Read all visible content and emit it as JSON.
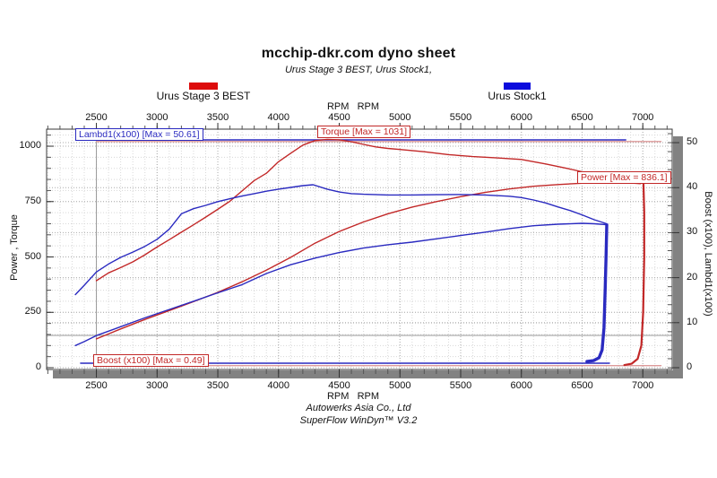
{
  "title": "mcchip-dkr.com dyno sheet",
  "subtitle": "Urus Stage 3 BEST, Urus Stock1,",
  "legend": [
    {
      "label": "Urus Stage 3 BEST",
      "color": "#dd0b0b"
    },
    {
      "label": "Urus Stock1",
      "color": "#0b0bdd"
    }
  ],
  "annotations": [
    {
      "text": "Lambd1(x100) [Max = 50.61]",
      "color": "#2a2ac0"
    },
    {
      "text": "Torque [Max = 1031]",
      "color": "#c22828"
    },
    {
      "text": "Power [Max = 836.1]",
      "color": "#c22828"
    },
    {
      "text": "Boost (x100) [Max = 0.49]",
      "color": "#c22828"
    }
  ],
  "footer": [
    "Autowerks Asia Co., Ltd",
    "SuperFlow WinDyn™ V3.2"
  ],
  "chart_data": {
    "type": "line",
    "x_unit_label": "RPM   RPM",
    "x_range": [
      2090,
      7242
    ],
    "x_ticks": [
      2500,
      3000,
      3500,
      4000,
      4500,
      5000,
      5500,
      6000,
      6500,
      7000
    ],
    "x_minor_step": 100,
    "y_left": {
      "label": "Power , Torque",
      "range": [
        -8,
        1077
      ],
      "ticks": [
        0,
        250,
        500,
        750,
        1000
      ],
      "minor_step": 50
    },
    "y_right": {
      "label": "Boost (x100), Lambd1(x100)",
      "range": [
        -0.4,
        53
      ],
      "ticks": [
        0,
        10,
        20,
        30,
        40,
        50
      ],
      "minor_step": 2
    },
    "cursor": {
      "rpm": 2500,
      "level_left": 146
    },
    "grid": {
      "minor_color": "#d8d8d8",
      "major_color": "#ababab",
      "cursor_color": "#9a9a9a"
    },
    "series": [
      {
        "name": "lambda-stage3",
        "color": "#dd9a9a",
        "width": 1.4,
        "axis": "right",
        "points": [
          [
            2500,
            50.25
          ],
          [
            7150,
            50.25
          ]
        ]
      },
      {
        "name": "boost-stage3",
        "color": "#dd9a9a",
        "width": 1.4,
        "axis": "right",
        "points": [
          [
            2500,
            0.45
          ],
          [
            7150,
            0.45
          ]
        ]
      },
      {
        "name": "lambda-stock",
        "color": "#2a2ac0",
        "width": 1.4,
        "axis": "right",
        "points": [
          [
            2330,
            50.6
          ],
          [
            6860,
            50.6
          ]
        ]
      },
      {
        "name": "boost-stock",
        "color": "#2a2ac0",
        "width": 1.4,
        "axis": "right",
        "points": [
          [
            2370,
            1.0
          ],
          [
            6725,
            1.0
          ]
        ]
      },
      {
        "name": "torque-stage3",
        "color": "#c22828",
        "width": 1.4,
        "axis": "left",
        "points": [
          [
            2500,
            393
          ],
          [
            2600,
            428
          ],
          [
            2700,
            452
          ],
          [
            2800,
            478
          ],
          [
            2900,
            510
          ],
          [
            3000,
            545
          ],
          [
            3100,
            578
          ],
          [
            3200,
            612
          ],
          [
            3300,
            645
          ],
          [
            3400,
            680
          ],
          [
            3500,
            715
          ],
          [
            3600,
            752
          ],
          [
            3700,
            798
          ],
          [
            3800,
            845
          ],
          [
            3900,
            878
          ],
          [
            4000,
            930
          ],
          [
            4100,
            968
          ],
          [
            4200,
            1005
          ],
          [
            4300,
            1025
          ],
          [
            4400,
            1031
          ],
          [
            4500,
            1029
          ],
          [
            4600,
            1020
          ],
          [
            4700,
            1008
          ],
          [
            4800,
            997
          ],
          [
            4900,
            990
          ],
          [
            5000,
            985
          ],
          [
            5200,
            975
          ],
          [
            5400,
            962
          ],
          [
            5600,
            953
          ],
          [
            5800,
            947
          ],
          [
            6000,
            940
          ],
          [
            6200,
            920
          ],
          [
            6400,
            897
          ],
          [
            6600,
            872
          ],
          [
            6800,
            852
          ],
          [
            6950,
            842
          ],
          [
            7005,
            840
          ]
        ]
      },
      {
        "name": "power-stage3",
        "color": "#c22828",
        "width": 1.4,
        "axis": "left",
        "points": [
          [
            2500,
            130
          ],
          [
            2700,
            175
          ],
          [
            2900,
            218
          ],
          [
            3100,
            258
          ],
          [
            3300,
            298
          ],
          [
            3500,
            340
          ],
          [
            3700,
            388
          ],
          [
            3900,
            440
          ],
          [
            4100,
            498
          ],
          [
            4300,
            562
          ],
          [
            4500,
            615
          ],
          [
            4700,
            658
          ],
          [
            4900,
            695
          ],
          [
            5100,
            725
          ],
          [
            5300,
            750
          ],
          [
            5500,
            772
          ],
          [
            5700,
            791
          ],
          [
            5900,
            807
          ],
          [
            6100,
            819
          ],
          [
            6300,
            827
          ],
          [
            6500,
            833
          ],
          [
            6700,
            835
          ],
          [
            6850,
            836
          ],
          [
            6980,
            831
          ]
        ]
      },
      {
        "name": "run-end-stage3",
        "color": "#c22828",
        "width": 2.2,
        "axis": "left",
        "points": [
          [
            7005,
            838
          ],
          [
            7012,
            700
          ],
          [
            7012,
            500
          ],
          [
            7003,
            250
          ],
          [
            6988,
            100
          ],
          [
            6958,
            40
          ],
          [
            6908,
            18
          ],
          [
            6848,
            12
          ]
        ]
      },
      {
        "name": "torque-stock",
        "color": "#2a2ac0",
        "width": 1.4,
        "axis": "left",
        "points": [
          [
            2327,
            330
          ],
          [
            2400,
            372
          ],
          [
            2500,
            432
          ],
          [
            2600,
            468
          ],
          [
            2700,
            498
          ],
          [
            2800,
            522
          ],
          [
            2900,
            548
          ],
          [
            3000,
            580
          ],
          [
            3100,
            625
          ],
          [
            3200,
            695
          ],
          [
            3300,
            718
          ],
          [
            3400,
            733
          ],
          [
            3500,
            750
          ],
          [
            3600,
            763
          ],
          [
            3700,
            775
          ],
          [
            3800,
            786
          ],
          [
            3900,
            797
          ],
          [
            4000,
            806
          ],
          [
            4100,
            814
          ],
          [
            4200,
            822
          ],
          [
            4285,
            826
          ],
          [
            4400,
            806
          ],
          [
            4500,
            793
          ],
          [
            4600,
            786
          ],
          [
            4700,
            783
          ],
          [
            4900,
            780
          ],
          [
            5100,
            780
          ],
          [
            5300,
            781
          ],
          [
            5500,
            782
          ],
          [
            5700,
            780
          ],
          [
            5900,
            774
          ],
          [
            6000,
            768
          ],
          [
            6100,
            757
          ],
          [
            6200,
            744
          ],
          [
            6300,
            726
          ],
          [
            6400,
            710
          ],
          [
            6500,
            690
          ],
          [
            6600,
            668
          ],
          [
            6703,
            650
          ]
        ]
      },
      {
        "name": "power-stock",
        "color": "#2a2ac0",
        "width": 1.4,
        "axis": "left",
        "points": [
          [
            2327,
            100
          ],
          [
            2400,
            118
          ],
          [
            2500,
            145
          ],
          [
            2700,
            185
          ],
          [
            2900,
            225
          ],
          [
            3100,
            263
          ],
          [
            3300,
            300
          ],
          [
            3500,
            338
          ],
          [
            3700,
            375
          ],
          [
            3900,
            425
          ],
          [
            4100,
            465
          ],
          [
            4300,
            495
          ],
          [
            4500,
            520
          ],
          [
            4700,
            540
          ],
          [
            4900,
            555
          ],
          [
            5100,
            567
          ],
          [
            5300,
            582
          ],
          [
            5500,
            597
          ],
          [
            5700,
            612
          ],
          [
            5900,
            628
          ],
          [
            6100,
            641
          ],
          [
            6300,
            648
          ],
          [
            6500,
            652
          ],
          [
            6600,
            650
          ],
          [
            6703,
            646
          ]
        ]
      },
      {
        "name": "run-end-stock",
        "color": "#2a2ac0",
        "width": 3.4,
        "axis": "left",
        "points": [
          [
            6703,
            645
          ],
          [
            6697,
            500
          ],
          [
            6690,
            350
          ],
          [
            6680,
            180
          ],
          [
            6665,
            80
          ],
          [
            6640,
            45
          ],
          [
            6595,
            32
          ],
          [
            6540,
            28
          ]
        ]
      }
    ]
  }
}
